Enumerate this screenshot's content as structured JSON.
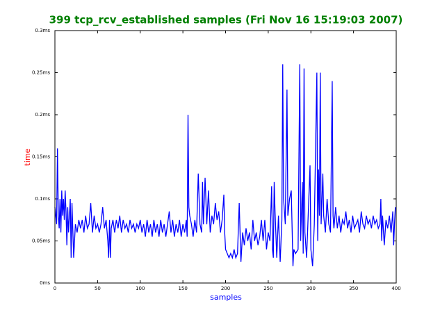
{
  "chart_data": {
    "type": "line",
    "title": "399 tcp_rcv_established samples (Fri Nov 16 15:19:03 2007)",
    "x_label": "samples",
    "y_label": "time",
    "color": "#0000ff",
    "xlim": [
      0,
      400
    ],
    "ylim": [
      0,
      0.3
    ],
    "xticks": [
      0,
      50,
      100,
      150,
      200,
      250,
      300,
      350,
      400
    ],
    "yticks": [
      {
        "value": 0,
        "label": "0ms"
      },
      {
        "value": 0.05,
        "label": "0.05ms"
      },
      {
        "value": 0.1,
        "label": "0.1ms"
      },
      {
        "value": 0.15,
        "label": "0.15ms"
      },
      {
        "value": 0.2,
        "label": "0.2ms"
      },
      {
        "value": 0.25,
        "label": "0.25ms"
      },
      {
        "value": 0.3,
        "label": "0.3ms"
      }
    ],
    "x": [
      0,
      2,
      3,
      4,
      5,
      6,
      7,
      8,
      9,
      10,
      11,
      12,
      13,
      14,
      15,
      16,
      17,
      18,
      19,
      20,
      22,
      24,
      26,
      28,
      30,
      32,
      34,
      36,
      38,
      40,
      42,
      44,
      46,
      48,
      50,
      52,
      54,
      56,
      58,
      60,
      62,
      63,
      64,
      65,
      66,
      68,
      70,
      72,
      74,
      76,
      78,
      80,
      82,
      84,
      86,
      88,
      90,
      92,
      94,
      96,
      98,
      100,
      102,
      104,
      106,
      108,
      110,
      112,
      114,
      116,
      118,
      120,
      122,
      124,
      126,
      128,
      130,
      132,
      134,
      136,
      138,
      140,
      142,
      144,
      146,
      148,
      150,
      152,
      154,
      155,
      156,
      157,
      158,
      160,
      162,
      164,
      166,
      168,
      170,
      172,
      173,
      174,
      176,
      178,
      180,
      182,
      184,
      186,
      188,
      190,
      192,
      194,
      196,
      198,
      199,
      200,
      202,
      204,
      206,
      208,
      210,
      212,
      214,
      216,
      218,
      220,
      222,
      224,
      226,
      228,
      230,
      232,
      234,
      236,
      238,
      240,
      242,
      244,
      246,
      248,
      250,
      252,
      254,
      255,
      256,
      257,
      258,
      260,
      262,
      264,
      266,
      267,
      268,
      270,
      272,
      273,
      275,
      277,
      279,
      280,
      282,
      285,
      287,
      288,
      290,
      291,
      292,
      293,
      295,
      299,
      300,
      302,
      304,
      307,
      308,
      309,
      310,
      311,
      312,
      314,
      315,
      317,
      319,
      321,
      323,
      325,
      326,
      327,
      329,
      331,
      333,
      335,
      337,
      339,
      341,
      343,
      345,
      347,
      349,
      351,
      353,
      355,
      357,
      359,
      361,
      363,
      365,
      367,
      369,
      371,
      373,
      375,
      377,
      379,
      381,
      382,
      383,
      384,
      386,
      388,
      390,
      392,
      394,
      396,
      397,
      398,
      399
    ],
    "values": [
      0.09,
      0.07,
      0.16,
      0.08,
      0.065,
      0.1,
      0.06,
      0.11,
      0.08,
      0.1,
      0.075,
      0.11,
      0.085,
      0.045,
      0.09,
      0.06,
      0.08,
      0.1,
      0.03,
      0.095,
      0.03,
      0.07,
      0.06,
      0.075,
      0.065,
      0.075,
      0.06,
      0.08,
      0.065,
      0.07,
      0.095,
      0.06,
      0.08,
      0.065,
      0.07,
      0.06,
      0.07,
      0.09,
      0.065,
      0.075,
      0.05,
      0.03,
      0.075,
      0.03,
      0.065,
      0.075,
      0.06,
      0.075,
      0.065,
      0.08,
      0.06,
      0.075,
      0.065,
      0.07,
      0.06,
      0.075,
      0.065,
      0.07,
      0.06,
      0.07,
      0.065,
      0.075,
      0.06,
      0.07,
      0.055,
      0.075,
      0.06,
      0.07,
      0.055,
      0.075,
      0.06,
      0.07,
      0.055,
      0.075,
      0.06,
      0.07,
      0.055,
      0.07,
      0.085,
      0.06,
      0.075,
      0.055,
      0.07,
      0.06,
      0.075,
      0.055,
      0.07,
      0.06,
      0.075,
      0.055,
      0.2,
      0.09,
      0.08,
      0.07,
      0.055,
      0.075,
      0.06,
      0.13,
      0.07,
      0.06,
      0.12,
      0.07,
      0.125,
      0.07,
      0.11,
      0.06,
      0.08,
      0.07,
      0.095,
      0.075,
      0.085,
      0.06,
      0.075,
      0.105,
      0.06,
      0.04,
      0.035,
      0.03,
      0.035,
      0.03,
      0.04,
      0.03,
      0.035,
      0.095,
      0.025,
      0.06,
      0.045,
      0.065,
      0.05,
      0.06,
      0.04,
      0.075,
      0.05,
      0.06,
      0.045,
      0.055,
      0.075,
      0.05,
      0.075,
      0.04,
      0.06,
      0.05,
      0.115,
      0.04,
      0.03,
      0.12,
      0.085,
      0.03,
      0.08,
      0.025,
      0.075,
      0.26,
      0.1,
      0.07,
      0.23,
      0.08,
      0.1,
      0.11,
      0.02,
      0.04,
      0.035,
      0.04,
      0.26,
      0.05,
      0.12,
      0.035,
      0.255,
      0.06,
      0.03,
      0.14,
      0.04,
      0.02,
      0.07,
      0.25,
      0.05,
      0.135,
      0.08,
      0.25,
      0.07,
      0.13,
      0.08,
      0.06,
      0.1,
      0.07,
      0.06,
      0.24,
      0.08,
      0.065,
      0.09,
      0.065,
      0.08,
      0.06,
      0.075,
      0.07,
      0.085,
      0.065,
      0.075,
      0.06,
      0.08,
      0.065,
      0.07,
      0.075,
      0.06,
      0.085,
      0.07,
      0.065,
      0.08,
      0.07,
      0.075,
      0.065,
      0.08,
      0.07,
      0.075,
      0.065,
      0.07,
      0.1,
      0.05,
      0.08,
      0.045,
      0.075,
      0.065,
      0.08,
      0.06,
      0.085,
      0.045,
      0.07,
      0.09
    ]
  }
}
